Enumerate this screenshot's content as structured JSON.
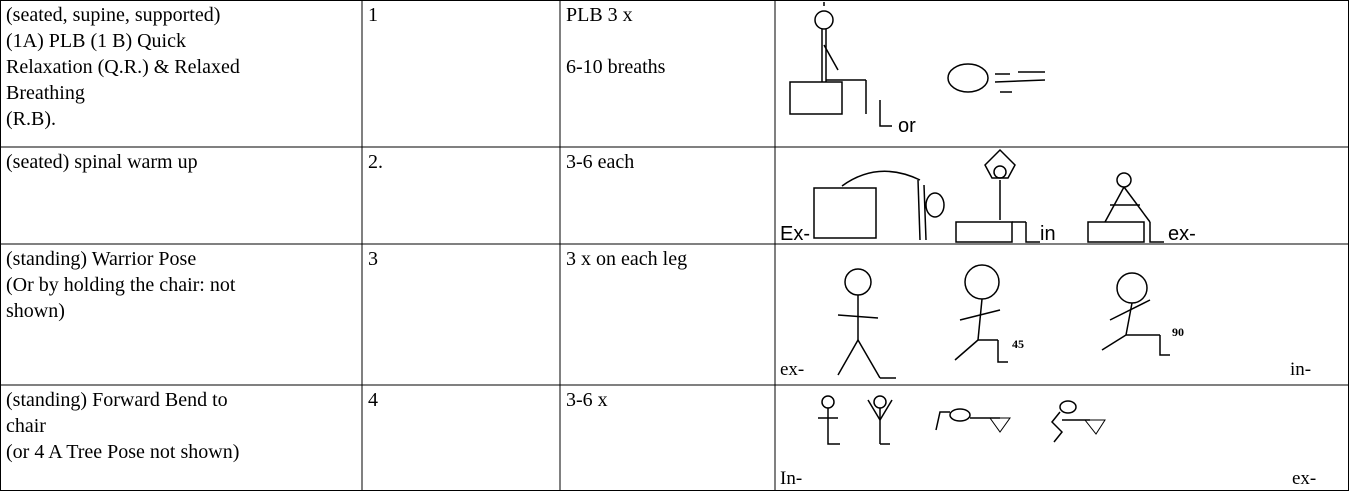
{
  "table": {
    "rows": [
      {
        "activity": [
          "(seated, supine, supported)",
          "(1A) PLB  (1 B) Quick",
          "Relaxation (Q.R.) & Relaxed",
          "Breathing",
          "(R.B)."
        ],
        "step": "1",
        "dose": [
          "PLB 3 x",
          "6-10 breaths"
        ],
        "figure_labels": [
          "or"
        ]
      },
      {
        "activity": [
          "(seated) spinal warm up"
        ],
        "step": "2.",
        "dose": [
          "3-6 each"
        ],
        "figure_labels": [
          "Ex-",
          "in",
          "ex-"
        ]
      },
      {
        "activity": [
          "(standing) Warrior Pose",
          "(Or by holding the chair: not",
          "shown)"
        ],
        "step": "3",
        "dose": [
          "3 x on each leg"
        ],
        "figure_labels": [
          "ex-",
          "45",
          "90",
          "in-"
        ]
      },
      {
        "activity": [
          "(standing) Forward Bend to",
          "chair",
          "(or 4 A Tree Pose not shown)"
        ],
        "step": "4",
        "dose": [
          "3-6 x"
        ],
        "figure_labels": [
          "In-",
          "ex-"
        ]
      }
    ]
  }
}
